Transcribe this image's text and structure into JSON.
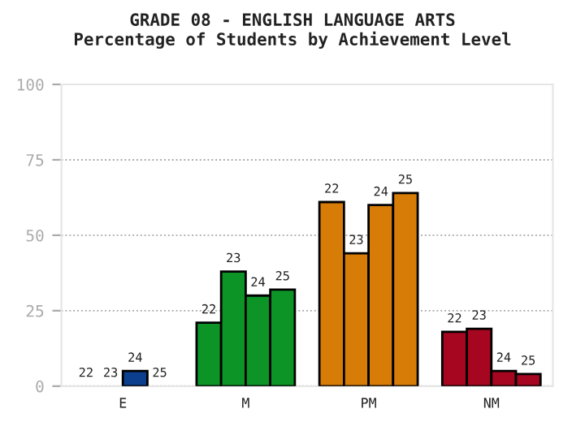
{
  "chart_data": {
    "type": "bar",
    "title": "GRADE 08 - ENGLISH LANGUAGE ARTS",
    "subtitle": "Percentage of Students by Achievement Level",
    "categories": [
      "E",
      "M",
      "PM",
      "NM"
    ],
    "series": [
      {
        "name": "22",
        "colors": [
          "#0d3f8f",
          "#0d9427",
          "#d87c08",
          "#a6061f"
        ],
        "values": [
          0,
          21,
          61,
          18
        ]
      },
      {
        "name": "23",
        "colors": [
          "#0d3f8f",
          "#0d9427",
          "#d87c08",
          "#a6061f"
        ],
        "values": [
          0,
          38,
          44,
          19
        ]
      },
      {
        "name": "24",
        "colors": [
          "#0d3f8f",
          "#0d9427",
          "#d87c08",
          "#a6061f"
        ],
        "values": [
          5,
          30,
          60,
          5
        ]
      },
      {
        "name": "25",
        "colors": [
          "#0d3f8f",
          "#0d9427",
          "#d87c08",
          "#a6061f"
        ],
        "values": [
          0,
          32,
          64,
          4
        ]
      }
    ],
    "ylim": [
      0,
      100
    ],
    "yticks": [
      0,
      25,
      50,
      75,
      100
    ],
    "grid": "y",
    "legend": false
  }
}
